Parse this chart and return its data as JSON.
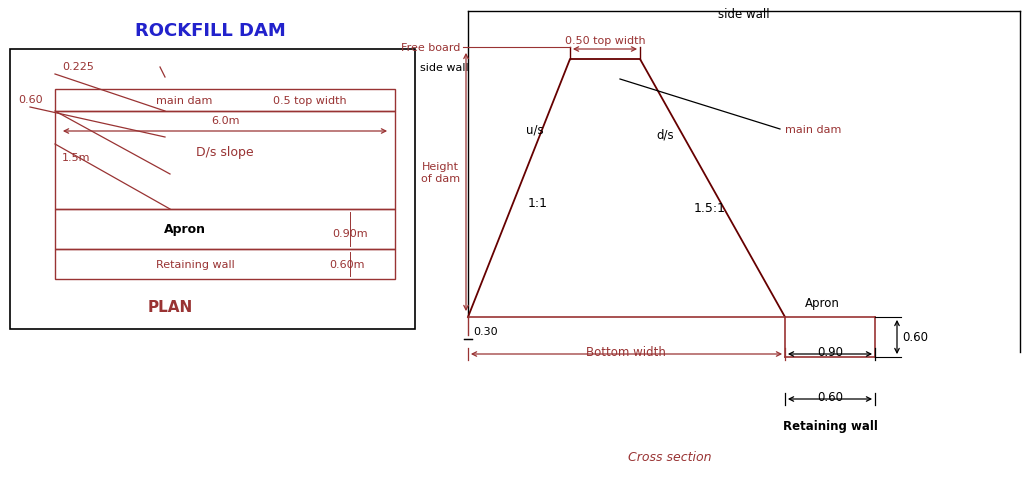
{
  "title": "ROCKFILL DAM",
  "title_color": "#2222cc",
  "red": "#993333",
  "black": "#000000",
  "bg": "#ffffff",
  "plan": {
    "label": "PLAN",
    "side_wall_label": "side wall",
    "dim_0225": "0.225",
    "dim_060_left": "0.60",
    "main_dam_label": "main dam",
    "main_dam_width": "0.5 top width",
    "dim_6m": "6.0m",
    "ds_slope_label": "D/s slope",
    "dim_15m": "1.5m",
    "apron_label": "Apron",
    "apron_dim": "0.90m",
    "retaining_label": "Retaining wall",
    "retaining_dim": "0.60m"
  },
  "cross": {
    "label": "Cross section",
    "side_wall_label": "side wall",
    "free_board": "Free board",
    "top_width": "0.50 top width",
    "main_dam": "main dam",
    "us_label": "u/s",
    "ds_label": "d/s",
    "height_label": "Height\nof dam",
    "slope_us": "1:1",
    "slope_ds": "1.5:1",
    "apron_label": "Apron",
    "dim_030": "0.30",
    "bottom_width": "Bottom width",
    "dim_090": "0.90",
    "dim_060_right": "0.60",
    "dim_060_bottom": "0.60",
    "retaining_label": "Retaining wall"
  }
}
